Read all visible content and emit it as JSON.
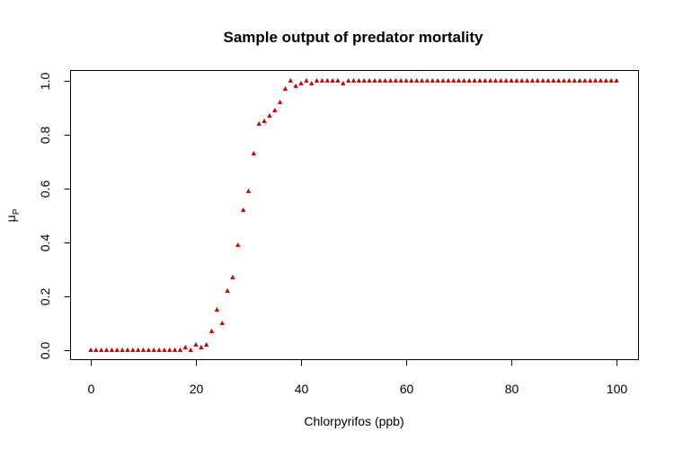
{
  "chart_data": {
    "type": "scatter",
    "title": "Sample output of predator mortality",
    "xlabel": "Chlorpyrifos (ppb)",
    "ylabel_main": "μ",
    "ylabel_sub": "P",
    "xlim": [
      0,
      100
    ],
    "ylim": [
      0,
      1
    ],
    "xticks": [
      0,
      20,
      40,
      60,
      80,
      100
    ],
    "yticks": [
      0.0,
      0.2,
      0.4,
      0.6,
      0.8,
      1.0
    ],
    "ytick_labels": [
      "0.0",
      "0.2",
      "0.4",
      "0.6",
      "0.8",
      "1.0"
    ],
    "grid": false,
    "marker": "triangle",
    "color": "#cc0000",
    "x": [
      0,
      1,
      2,
      3,
      4,
      5,
      6,
      7,
      8,
      9,
      10,
      11,
      12,
      13,
      14,
      15,
      16,
      17,
      18,
      19,
      20,
      21,
      22,
      23,
      24,
      25,
      26,
      27,
      28,
      29,
      30,
      31,
      32,
      33,
      34,
      35,
      36,
      37,
      38,
      39,
      40,
      41,
      42,
      43,
      44,
      45,
      46,
      47,
      48,
      49,
      50,
      51,
      52,
      53,
      54,
      55,
      56,
      57,
      58,
      59,
      60,
      61,
      62,
      63,
      64,
      65,
      66,
      67,
      68,
      69,
      70,
      71,
      72,
      73,
      74,
      75,
      76,
      77,
      78,
      79,
      80,
      81,
      82,
      83,
      84,
      85,
      86,
      87,
      88,
      89,
      90,
      91,
      92,
      93,
      94,
      95,
      96,
      97,
      98,
      99,
      100
    ],
    "y": [
      0,
      0,
      0,
      0,
      0,
      0,
      0,
      0,
      0,
      0,
      0,
      0,
      0,
      0,
      0,
      0,
      0,
      0,
      0.01,
      0,
      0.02,
      0.01,
      0.02,
      0.07,
      0.15,
      0.1,
      0.22,
      0.27,
      0.39,
      0.52,
      0.59,
      0.73,
      0.84,
      0.85,
      0.87,
      0.89,
      0.92,
      0.97,
      1.0,
      0.98,
      0.99,
      1.0,
      0.99,
      1.0,
      1.0,
      1.0,
      1.0,
      1.0,
      0.99,
      1.0,
      1.0,
      1.0,
      1.0,
      1.0,
      1.0,
      1.0,
      1.0,
      1.0,
      1.0,
      1.0,
      1.0,
      1.0,
      1.0,
      1.0,
      1.0,
      1.0,
      1.0,
      1.0,
      1.0,
      1.0,
      1.0,
      1.0,
      1.0,
      1.0,
      1.0,
      1.0,
      1.0,
      1.0,
      1.0,
      1.0,
      1.0,
      1.0,
      1.0,
      1.0,
      1.0,
      1.0,
      1.0,
      1.0,
      1.0,
      1.0,
      1.0,
      1.0,
      1.0,
      1.0,
      1.0,
      1.0,
      1.0,
      1.0,
      1.0,
      1.0,
      1.0
    ]
  }
}
